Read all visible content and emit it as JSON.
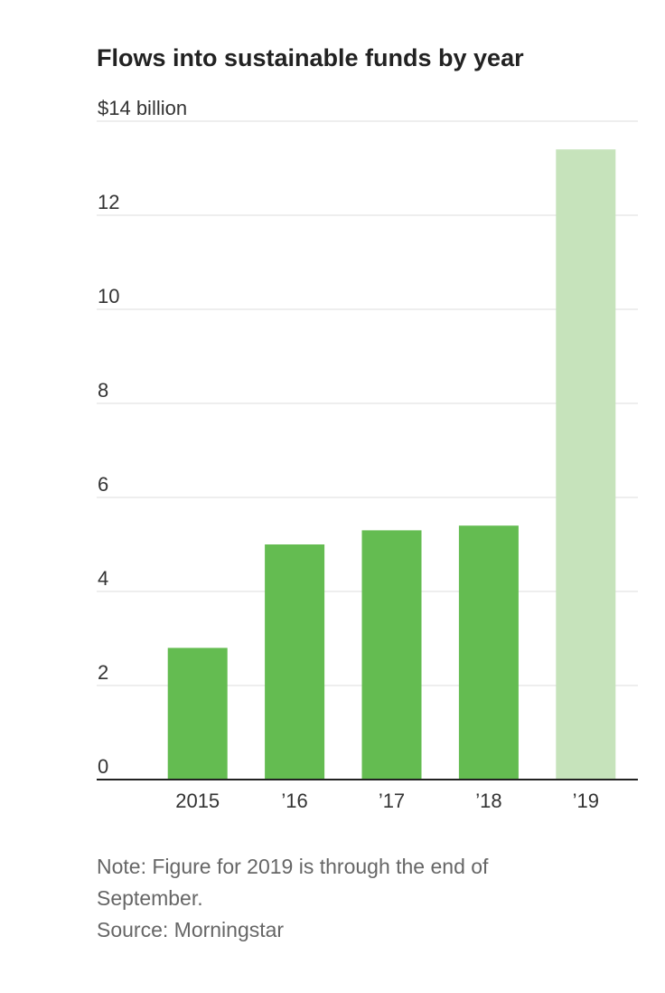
{
  "chart_data": {
    "type": "bar",
    "title": "Flows into sustainable funds by year",
    "categories": [
      "2015",
      "’16",
      "’17",
      "’18",
      "’19"
    ],
    "values": [
      2.8,
      5.0,
      5.3,
      5.4,
      13.4
    ],
    "colors": [
      "#64bc51",
      "#64bc51",
      "#64bc51",
      "#64bc51",
      "#c6e3bb"
    ],
    "ylim": [
      0,
      14
    ],
    "yticks": [
      0,
      2,
      4,
      6,
      8,
      10,
      12,
      {
        "value": 14,
        "label": "$14 billion"
      }
    ],
    "grid": true,
    "note": "Note: Figure for 2019 is through the end of September.",
    "source": "Source: Morningstar"
  }
}
